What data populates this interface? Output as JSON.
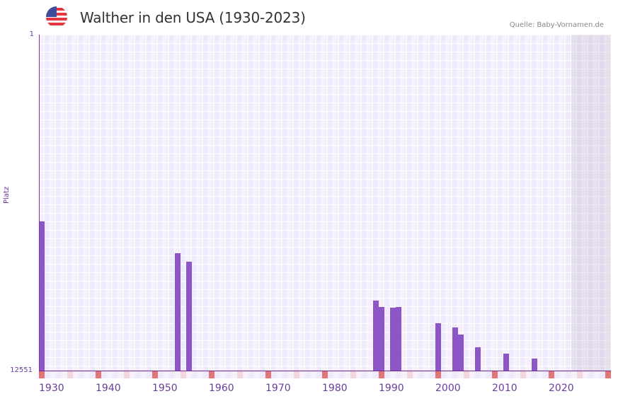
{
  "header": {
    "title": "Walther in den USA (1930-2023)",
    "source": "Quelle: Baby-Vornamen.de",
    "flag_icon": "us-flag-icon"
  },
  "colors": {
    "bar": "#8e55c7",
    "axis": "#6a2c91",
    "label": "#6a3d9a",
    "decade_marker": "#e57373",
    "half_decade_marker": "#f5d5dc",
    "cell_a": "#efeafb",
    "cell_b": "#f4f1fc",
    "future_shade": "#e3dfee"
  },
  "chart_data": {
    "type": "bar",
    "title": "Walther in den USA (1930-2023)",
    "xlabel": "",
    "ylabel": "Platz",
    "y_inverted": true,
    "ylim": [
      1,
      12551
    ],
    "yticks": [
      "1",
      "12551"
    ],
    "xlim": [
      1930,
      2030
    ],
    "xticks": [
      "1930",
      "1940",
      "1950",
      "1960",
      "1970",
      "1980",
      "1990",
      "2000",
      "2010",
      "2020"
    ],
    "future_shaded_from": 2024,
    "grid": true,
    "legend": null,
    "source": "Quelle: Baby-Vornamen.de",
    "series": [
      {
        "name": "Platz",
        "points": [
          {
            "year": 1930,
            "rank": 6976
          },
          {
            "year": 1954,
            "rank": 8165
          },
          {
            "year": 1956,
            "rank": 8482
          },
          {
            "year": 1989,
            "rank": 9935
          },
          {
            "year": 1990,
            "rank": 10173
          },
          {
            "year": 1992,
            "rank": 10199
          },
          {
            "year": 1993,
            "rank": 10173
          },
          {
            "year": 2000,
            "rank": 10780
          },
          {
            "year": 2003,
            "rank": 10939
          },
          {
            "year": 2004,
            "rank": 11203
          },
          {
            "year": 2007,
            "rank": 11679
          },
          {
            "year": 2012,
            "rank": 11916
          },
          {
            "year": 2017,
            "rank": 12101
          }
        ]
      }
    ]
  }
}
